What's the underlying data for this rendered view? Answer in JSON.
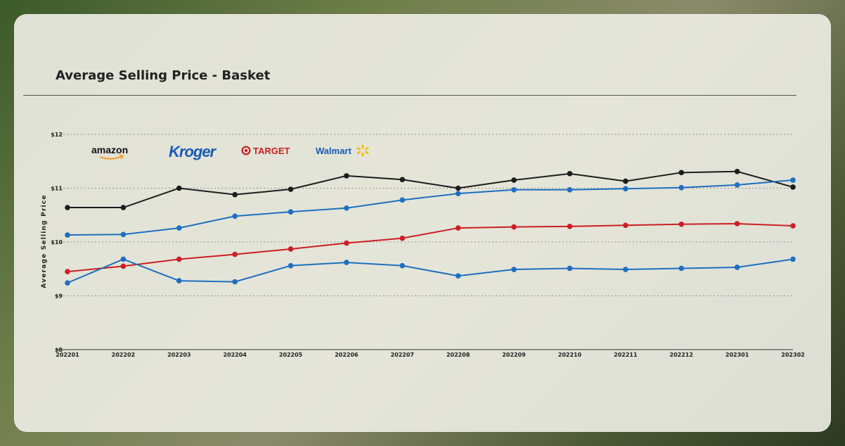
{
  "chart_data": {
    "type": "line",
    "title": "Average Selling Price - Basket",
    "xlabel": "",
    "ylabel": "Average Selling Price",
    "categories": [
      "202201",
      "202202",
      "202203",
      "202204",
      "202205",
      "202206",
      "202207",
      "202208",
      "202209",
      "202210",
      "202211",
      "202212",
      "202301",
      "202302"
    ],
    "y_ticks": [
      "$8",
      "$9",
      "$10",
      "$11",
      "$12"
    ],
    "ylim": [
      8,
      12
    ],
    "grid": true,
    "legend": "top-left (logos)",
    "series": [
      {
        "color": "#1d1d1d",
        "values": [
          10.64,
          10.64,
          11.0,
          10.88,
          10.98,
          11.23,
          11.16,
          11.0,
          11.15,
          11.27,
          11.13,
          11.29,
          11.31,
          11.02
        ]
      },
      {
        "color": "#1f6fc0",
        "values": [
          10.13,
          10.14,
          10.26,
          10.48,
          10.56,
          10.63,
          10.78,
          10.9,
          10.97,
          10.97,
          10.99,
          11.01,
          11.06,
          11.15
        ]
      },
      {
        "color": "#cc1f24",
        "values": [
          9.45,
          9.55,
          9.68,
          9.77,
          9.87,
          9.98,
          10.07,
          10.26,
          10.28,
          10.29,
          10.31,
          10.33,
          10.34,
          10.3
        ]
      },
      {
        "color": "#1f6fc0",
        "values": [
          9.24,
          9.68,
          9.28,
          9.26,
          9.56,
          9.62,
          9.56,
          9.37,
          9.49,
          9.51,
          9.49,
          9.51,
          9.53,
          9.68
        ]
      }
    ]
  },
  "legend_logos": [
    {
      "text": "amazon",
      "icon": "amazon-smile-icon",
      "color": "#111111"
    },
    {
      "text": "Kroger",
      "icon": "kroger-logo",
      "color": "#1a5ab5"
    },
    {
      "text": "TARGET",
      "icon": "target-bullseye-icon",
      "color": "#cc1f24"
    },
    {
      "text": "Walmart",
      "icon": "walmart-spark-icon",
      "color": "#1a5ab5",
      "accent": "#f5b800"
    }
  ]
}
